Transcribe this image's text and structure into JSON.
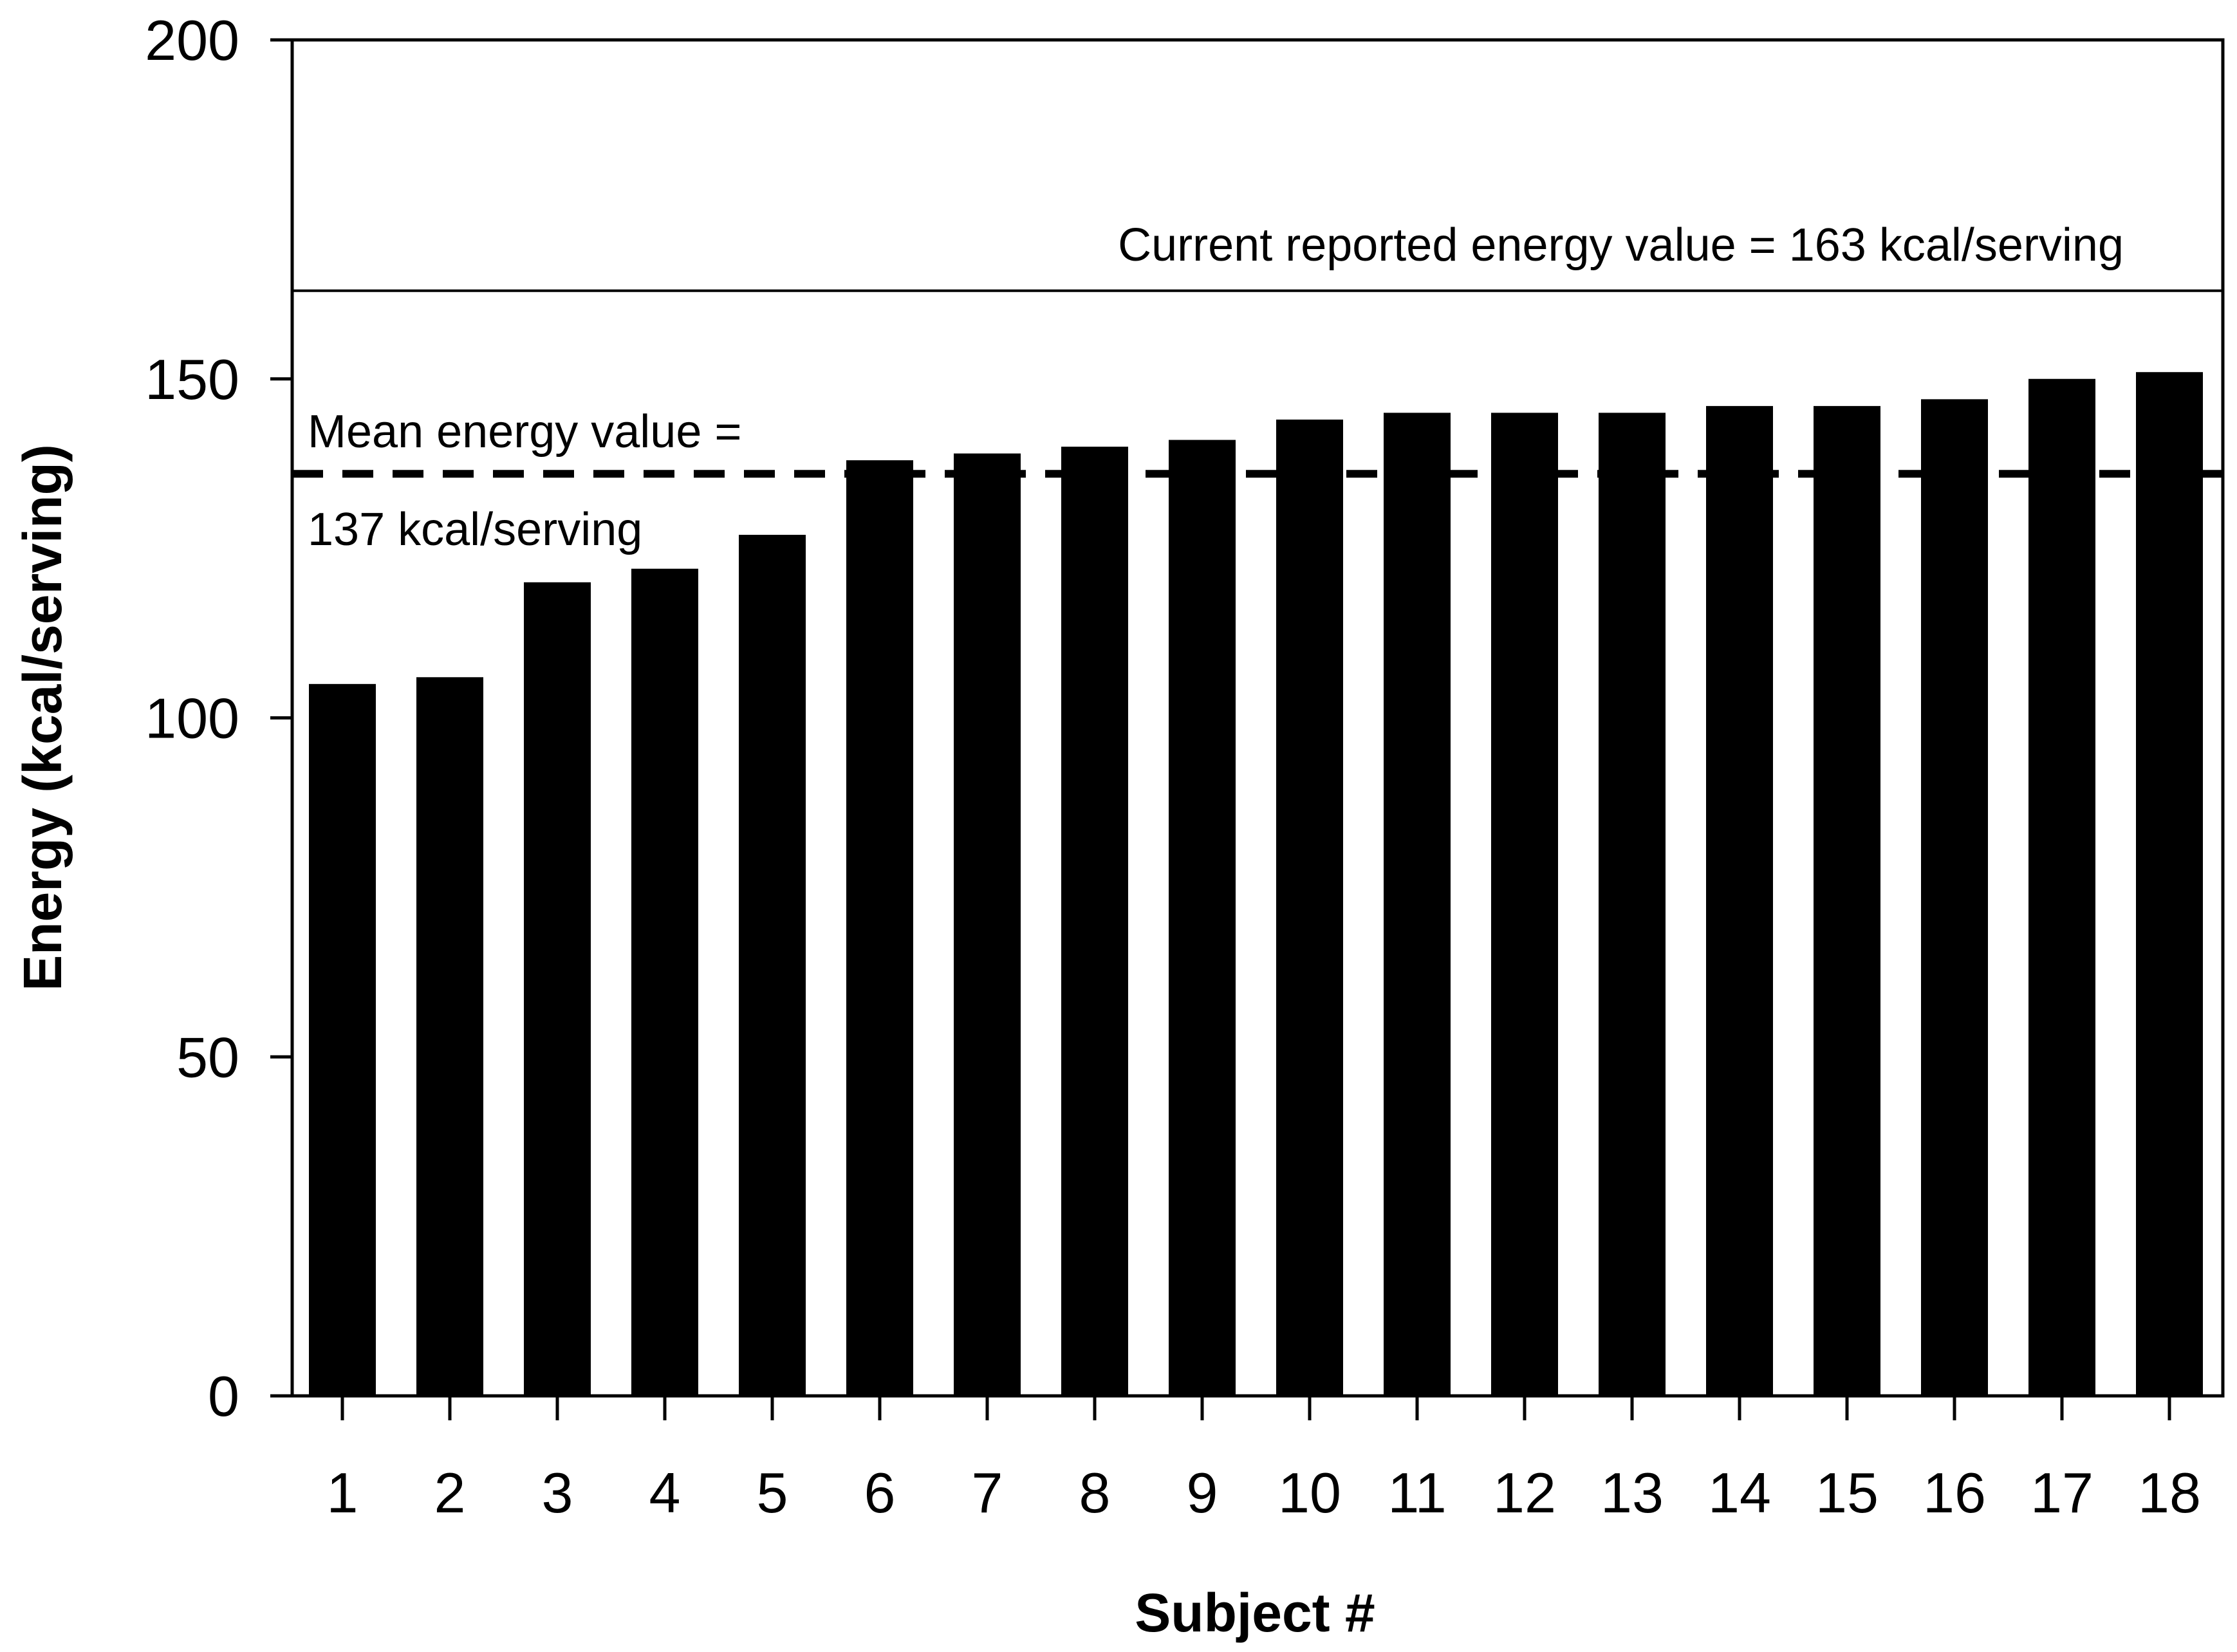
{
  "chart_data": {
    "type": "bar",
    "title": "",
    "xlabel": "Subject #",
    "ylabel": "Energy (kcal/serving)",
    "categories": [
      "1",
      "2",
      "3",
      "4",
      "5",
      "6",
      "7",
      "8",
      "9",
      "10",
      "11",
      "12",
      "13",
      "14",
      "15",
      "16",
      "17",
      "18"
    ],
    "values": [
      105,
      106,
      120,
      122,
      127,
      138,
      139,
      140,
      141,
      144,
      145,
      145,
      145,
      146,
      146,
      147,
      150,
      151
    ],
    "ylim": [
      0,
      200
    ],
    "yticks": [
      0,
      50,
      100,
      150,
      200
    ],
    "grid": false,
    "bar_color": "#000000",
    "reference_lines": [
      {
        "name": "current_reported",
        "value": 163,
        "style": "solid",
        "label": "Current reported energy value = 163 kcal/serving"
      },
      {
        "name": "mean",
        "value": 136,
        "style": "dashed",
        "label_line1": "Mean energy value =",
        "label_line2": "137 kcal/serving"
      }
    ]
  }
}
